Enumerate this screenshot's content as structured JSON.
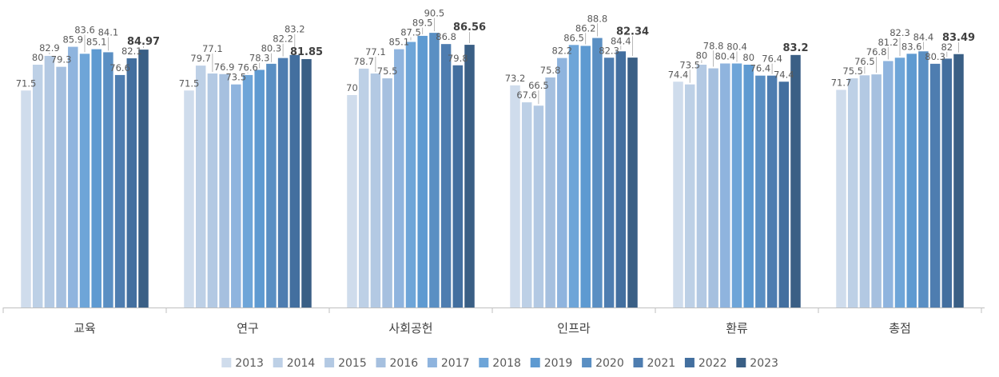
{
  "chart_data": {
    "type": "bar",
    "categories": [
      "교육",
      "연구",
      "사회공헌",
      "인프라",
      "환류",
      "총점"
    ],
    "ylim": [
      0,
      100
    ],
    "grid": false,
    "legend_position": "bottom",
    "series": [
      {
        "name": "2013",
        "color": "#cfdcec",
        "values": [
          71.5,
          71.5,
          70,
          73.2,
          74.4,
          71.7
        ],
        "labels": [
          "71.5",
          "71.5",
          "70",
          "73.2",
          "74.4",
          "71.7"
        ]
      },
      {
        "name": "2014",
        "color": "#bdd0e6",
        "values": [
          80,
          79.7,
          78.7,
          67.6,
          73.5,
          75.5
        ],
        "labels": [
          "80",
          "79.7",
          "78.7",
          "67.6",
          "73.5",
          "75.5"
        ]
      },
      {
        "name": "2015",
        "color": "#b3c9e3",
        "values": [
          82.9,
          77.1,
          77.1,
          66.5,
          80,
          76.5
        ],
        "labels": [
          "82.9",
          "77.1",
          "77.1",
          "66.5",
          "80",
          "76.5"
        ]
      },
      {
        "name": "2016",
        "color": "#a6c0df",
        "values": [
          79.3,
          76.9,
          75.5,
          75.8,
          78.8,
          76.8
        ],
        "labels": [
          "79.3",
          "76.9",
          "75.5",
          "75.8",
          "78.8",
          "76.8"
        ]
      },
      {
        "name": "2017",
        "color": "#8fb4de",
        "values": [
          85.9,
          73.5,
          85.1,
          82.2,
          80.4,
          81.2
        ],
        "labels": [
          "85.9",
          "73.5",
          "85.1",
          "82.2",
          "80.4",
          "81.2"
        ]
      },
      {
        "name": "2018",
        "color": "#6ea5d8",
        "values": [
          83.6,
          76.6,
          87.5,
          86.5,
          80.4,
          82.3
        ],
        "labels": [
          "83.6",
          "76.6",
          "87.5",
          "86.5",
          "80.4",
          "82.3"
        ]
      },
      {
        "name": "2019",
        "color": "#5e9ad1",
        "values": [
          85.1,
          78.3,
          89.5,
          86.2,
          80,
          83.6
        ],
        "labels": [
          "85.1",
          "78.3",
          "89.5",
          "86.2",
          "80",
          "83.6"
        ]
      },
      {
        "name": "2020",
        "color": "#5a8fc3",
        "values": [
          84.1,
          80.3,
          90.5,
          88.8,
          76.4,
          84.4
        ],
        "labels": [
          "84.1",
          "80.3",
          "90.5",
          "88.8",
          "76.4",
          "84.4"
        ]
      },
      {
        "name": "2021",
        "color": "#4e7db0",
        "values": [
          76.6,
          82.2,
          86.8,
          82.3,
          76.4,
          80.3
        ],
        "labels": [
          "76.6",
          "82.2",
          "86.8",
          "82.3",
          "76.4",
          "80.3"
        ]
      },
      {
        "name": "2022",
        "color": "#436f9f",
        "values": [
          82.1,
          83.2,
          79.8,
          84.4,
          74.4,
          82
        ],
        "labels": [
          "82.1",
          "83.2",
          "79.8",
          "84.4",
          "74.4",
          "82"
        ]
      },
      {
        "name": "2023",
        "color": "#3a5f85",
        "values": [
          84.97,
          81.85,
          86.56,
          82.34,
          83.2,
          83.49
        ],
        "labels": [
          "84.97",
          "81.85",
          "86.56",
          "82.34",
          "83.2",
          "83.49"
        ],
        "bold_labels": true
      }
    ]
  }
}
